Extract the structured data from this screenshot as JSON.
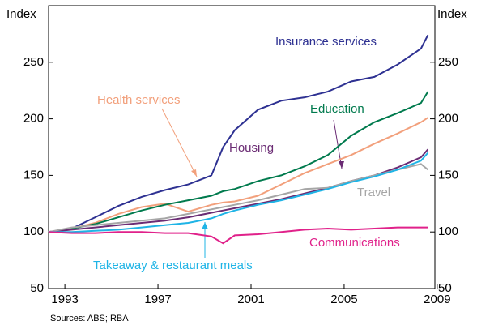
{
  "chart_data": {
    "type": "line",
    "y_label": "Index",
    "y2_label": "Index",
    "source": "Sources: ABS; RBA",
    "x": [
      1992.8,
      1993.8,
      1994.8,
      1995.8,
      1996.8,
      1997.8,
      1998.8,
      1999.8,
      2000.3,
      2000.8,
      2001.8,
      2002.8,
      2003.8,
      2004.8,
      2005.8,
      2006.8,
      2007.8,
      2008.8,
      2009.1
    ],
    "xlim": [
      1992.8,
      2009.4
    ],
    "xticks": [
      {
        "value": 1993.5,
        "label": "1993"
      },
      {
        "value": 1997.5,
        "label": "1997"
      },
      {
        "value": 2001.5,
        "label": "2001"
      },
      {
        "value": 2005.5,
        "label": "2005"
      },
      {
        "value": 2009.5,
        "label": "2009"
      }
    ],
    "ylim": [
      50,
      300
    ],
    "yticks": [
      50,
      100,
      150,
      200,
      250
    ],
    "y2lim": [
      50,
      300
    ],
    "y2ticks": [
      50,
      100,
      150,
      200,
      250
    ],
    "series": [
      {
        "name": "Insurance services",
        "color": "#2e3192",
        "values": [
          100,
          103,
          113,
          123,
          131,
          137,
          142,
          150,
          175,
          190,
          208,
          216,
          219,
          224,
          233,
          237,
          248,
          262,
          274
        ]
      },
      {
        "name": "Health services",
        "color": "#f2a07c",
        "values": [
          100,
          103,
          108,
          116,
          122,
          125,
          118,
          124,
          126,
          127,
          132,
          142,
          152,
          160,
          168,
          178,
          187,
          197,
          201
        ]
      },
      {
        "name": "Education",
        "color": "#007a4d",
        "values": [
          100,
          103,
          107,
          113,
          119,
          124,
          128,
          132,
          136,
          138,
          145,
          150,
          158,
          168,
          185,
          197,
          205,
          214,
          224
        ]
      },
      {
        "name": "Housing",
        "color": "#6b2c74",
        "values": [
          100,
          102,
          104,
          106,
          108,
          110,
          113,
          117,
          119,
          121,
          125,
          129,
          134,
          139,
          145,
          150,
          157,
          166,
          173
        ]
      },
      {
        "name": "Travel",
        "color": "#a6a6a6",
        "values": [
          100,
          104,
          106,
          108,
          110,
          112,
          116,
          120,
          122,
          124,
          128,
          133,
          138,
          139,
          145,
          150,
          155,
          160,
          155
        ]
      },
      {
        "name": "Takeaway & restaurant meals",
        "color": "#1fb4e6",
        "values": [
          100,
          100,
          101,
          102,
          104,
          106,
          108,
          112,
          116,
          119,
          124,
          128,
          133,
          138,
          144,
          149,
          155,
          163,
          170
        ]
      },
      {
        "name": "Communications",
        "color": "#e0218a",
        "values": [
          100,
          99,
          99,
          100,
          100,
          99,
          99,
          96,
          90,
          97,
          98,
          100,
          102,
          103,
          102,
          103,
          104,
          104,
          104
        ]
      }
    ]
  }
}
